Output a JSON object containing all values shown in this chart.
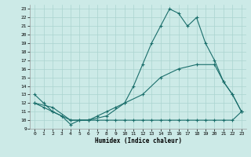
{
  "title": "",
  "xlabel": "Humidex (Indice chaleur)",
  "xlim": [
    -0.5,
    23.5
  ],
  "ylim": [
    9,
    23.5
  ],
  "yticks": [
    9,
    10,
    11,
    12,
    13,
    14,
    15,
    16,
    17,
    18,
    19,
    20,
    21,
    22,
    23
  ],
  "xticks": [
    0,
    1,
    2,
    3,
    4,
    5,
    6,
    7,
    8,
    9,
    10,
    11,
    12,
    13,
    14,
    15,
    16,
    17,
    18,
    19,
    20,
    21,
    22,
    23
  ],
  "bg_color": "#cceae7",
  "grid_color": "#aad4d0",
  "line_color": "#1a6e6b",
  "line1_x": [
    0,
    1,
    2,
    3,
    4,
    5,
    6,
    7,
    8,
    9,
    10,
    11,
    12,
    13,
    14,
    15,
    16,
    17,
    18,
    19,
    20,
    21,
    22,
    23
  ],
  "line1_y": [
    13,
    12,
    11,
    10.5,
    9.5,
    10,
    10,
    10.5,
    11,
    11.5,
    12,
    14,
    16.5,
    19,
    21,
    23,
    22.5,
    21,
    22,
    19,
    17,
    14.5,
    13,
    11
  ],
  "line2_x": [
    0,
    1,
    2,
    3,
    4,
    5,
    6,
    7,
    8,
    9,
    10,
    11,
    12,
    13,
    14,
    15,
    16,
    17,
    18,
    19,
    20,
    21,
    22,
    23
  ],
  "line2_y": [
    12,
    11.5,
    11,
    10.5,
    10,
    10,
    10,
    10,
    10,
    10,
    10,
    10,
    10,
    10,
    10,
    10,
    10,
    10,
    10,
    10,
    10,
    10,
    10,
    11
  ],
  "line3_x": [
    0,
    2,
    4,
    6,
    8,
    10,
    12,
    14,
    16,
    18,
    20,
    21,
    22,
    23
  ],
  "line3_y": [
    12,
    11.5,
    10,
    10,
    10.5,
    12,
    13,
    15,
    16,
    16.5,
    16.5,
    14.5,
    13,
    11
  ]
}
